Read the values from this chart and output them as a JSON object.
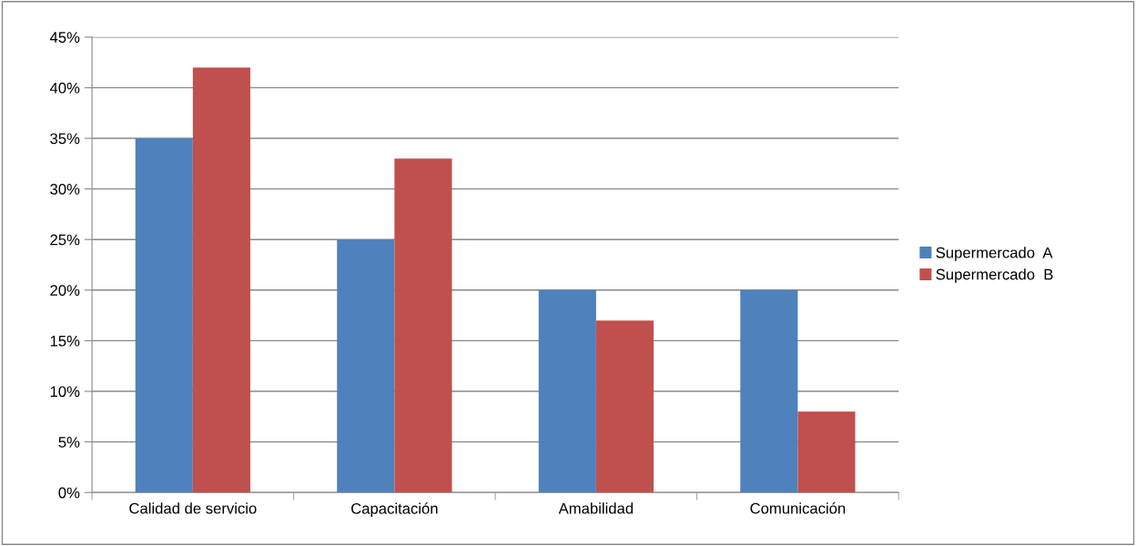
{
  "chart_data": {
    "type": "bar",
    "categories": [
      "Calidad de servicio",
      "Capacitación",
      "Amabilidad",
      "Comunicación"
    ],
    "series": [
      {
        "name": "Supermercado  A",
        "color": "#4f81bd",
        "values": [
          35,
          25,
          20,
          20
        ]
      },
      {
        "name": "Supermercado  B",
        "color": "#c0504d",
        "values": [
          42,
          33,
          17,
          8
        ]
      }
    ],
    "ylim": [
      0,
      45
    ],
    "yticks": [
      {
        "value": 0,
        "label": "0%"
      },
      {
        "value": 5,
        "label": "5%"
      },
      {
        "value": 10,
        "label": "10%"
      },
      {
        "value": 15,
        "label": "15%"
      },
      {
        "value": 20,
        "label": "20%"
      },
      {
        "value": 25,
        "label": "25%"
      },
      {
        "value": 30,
        "label": "30%"
      },
      {
        "value": 35,
        "label": "35%"
      },
      {
        "value": 40,
        "label": "40%"
      },
      {
        "value": 45,
        "label": "45%"
      }
    ],
    "grid": "y",
    "legend": "right"
  }
}
